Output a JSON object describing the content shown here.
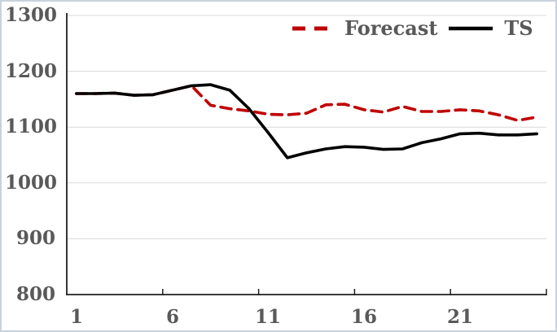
{
  "window": {
    "background": "#ffffff",
    "border_color": "#c9d2de"
  },
  "chart_data": {
    "type": "line",
    "title": "",
    "xlabel": "",
    "ylabel": "",
    "x": [
      1,
      2,
      3,
      4,
      5,
      6,
      7,
      8,
      9,
      10,
      11,
      12,
      13,
      14,
      15,
      16,
      17,
      18,
      19,
      20,
      21,
      22,
      23,
      24,
      25
    ],
    "x_ticks": [
      1,
      6,
      11,
      16,
      21
    ],
    "y_ticks": [
      800,
      900,
      1000,
      1100,
      1200,
      1300
    ],
    "ylim": [
      800,
      1300
    ],
    "grid": true,
    "legend_position": "top-right",
    "axis_color": "#1f1f1f",
    "gridline_color": "#d9d9d9",
    "tick_label_color": "#595959",
    "series": [
      {
        "name": "Forecast",
        "color": "#c00000",
        "line_style": "dashed",
        "values": [
          1160,
          1160,
          1161,
          1157,
          1158,
          1166,
          1174,
          1139,
          1133,
          1129,
          1123,
          1122,
          1125,
          1140,
          1141,
          1131,
          1127,
          1137,
          1128,
          1128,
          1131,
          1129,
          1122,
          1112,
          1118
        ]
      },
      {
        "name": "TS",
        "color": "#000000",
        "line_style": "solid",
        "values": [
          1160,
          1160,
          1161,
          1157,
          1158,
          1166,
          1174,
          1176,
          1166,
          1133,
          1090,
          1045,
          1054,
          1061,
          1065,
          1064,
          1060,
          1061,
          1072,
          1079,
          1088,
          1089,
          1086,
          1086,
          1088
        ]
      }
    ]
  }
}
